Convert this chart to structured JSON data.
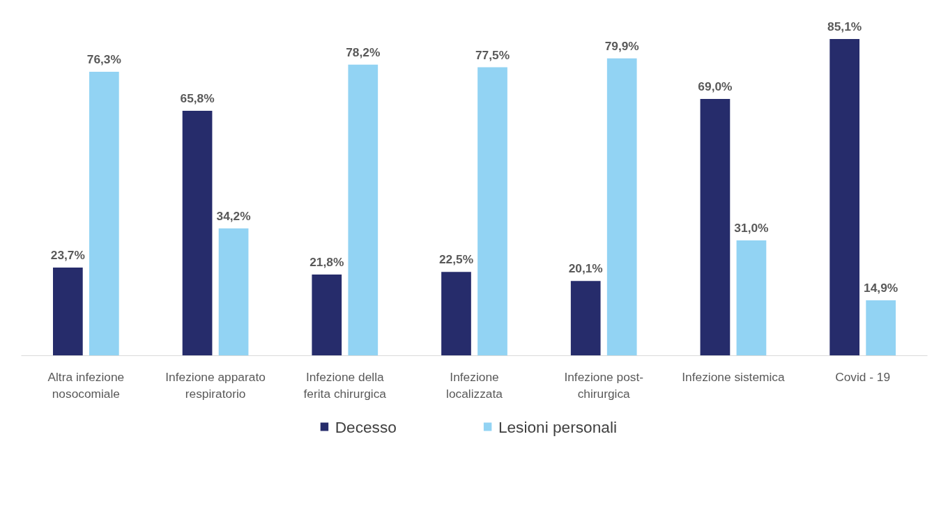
{
  "chart_data": {
    "type": "bar",
    "categories": [
      "Altra infezione nosocomiale",
      "Infezione apparato respiratorio",
      "Infezione della ferita chirurgica",
      "Infezione localizzata",
      "Infezione post-chirurgica",
      "Infezione sistemica",
      "Covid - 19"
    ],
    "series": [
      {
        "name": "Decesso",
        "color": "#262c6b",
        "values": [
          23.7,
          65.8,
          21.8,
          22.5,
          20.1,
          69.0,
          85.1
        ],
        "value_labels": [
          "23,7%",
          "65,8%",
          "21,8%",
          "22,5%",
          "20,1%",
          "69,0%",
          "85,1%"
        ]
      },
      {
        "name": "Lesioni personali",
        "color": "#92d3f3",
        "values": [
          76.3,
          34.2,
          78.2,
          77.5,
          79.9,
          31.0,
          14.9
        ],
        "value_labels": [
          "76,3%",
          "34,2%",
          "78,2%",
          "77,5%",
          "79,9%",
          "31,0%",
          "14,9%"
        ]
      }
    ],
    "legend": "bottom",
    "grid": false
  }
}
